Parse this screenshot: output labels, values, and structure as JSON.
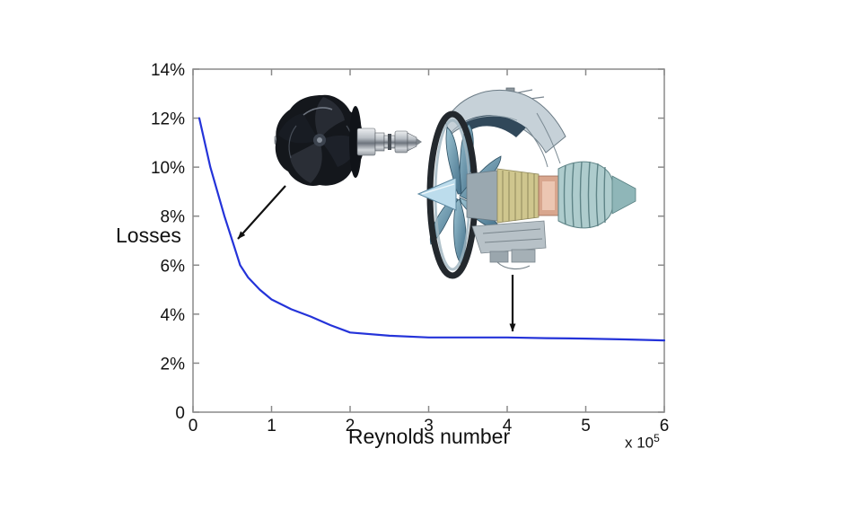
{
  "chart_data": {
    "type": "line",
    "title": "",
    "xlabel": "Reynolds number",
    "ylabel": "Losses",
    "x_scale_prefix": "x 10",
    "x_scale_exponent": "5",
    "xlim": [
      0,
      6
    ],
    "ylim": [
      0,
      14
    ],
    "grid": false,
    "frame_color": "#8a8a8a",
    "text_color": "#111111",
    "x_ticks": [
      {
        "v": 0,
        "label": "0"
      },
      {
        "v": 1,
        "label": "1"
      },
      {
        "v": 2,
        "label": "2"
      },
      {
        "v": 3,
        "label": "3"
      },
      {
        "v": 4,
        "label": "4"
      },
      {
        "v": 5,
        "label": "5"
      },
      {
        "v": 6,
        "label": "6"
      }
    ],
    "y_ticks": [
      {
        "v": 0,
        "label": "0"
      },
      {
        "v": 2,
        "label": "2%"
      },
      {
        "v": 4,
        "label": "4%"
      },
      {
        "v": 6,
        "label": "6%"
      },
      {
        "v": 8,
        "label": "8%"
      },
      {
        "v": 10,
        "label": "10%"
      },
      {
        "v": 12,
        "label": "12%"
      },
      {
        "v": 14,
        "label": "14%"
      }
    ],
    "series": [
      {
        "name": "losses-vs-reynolds",
        "color": "#2433d9",
        "x": [
          0.08,
          0.22,
          0.4,
          0.5,
          0.6,
          0.7,
          0.85,
          1.0,
          1.25,
          1.5,
          1.75,
          2.0,
          2.5,
          3.0,
          3.5,
          4.0,
          4.5,
          5.0,
          5.5,
          6.0
        ],
        "y": [
          12.0,
          10.0,
          8.0,
          7.0,
          6.0,
          5.5,
          5.0,
          4.6,
          4.2,
          3.9,
          3.55,
          3.25,
          3.12,
          3.05,
          3.05,
          3.05,
          3.02,
          3.0,
          2.97,
          2.93
        ]
      }
    ],
    "annotations": [
      {
        "name": "small-turbomachine-arrow",
        "points_to": {
          "x": 0.55,
          "y": 7.0
        },
        "illustration": "centrifugal-compressor-wheel"
      },
      {
        "name": "large-turbomachine-arrow",
        "points_to": {
          "x": 4.05,
          "y": 3.1
        },
        "illustration": "turbofan-engine-cutaway"
      }
    ],
    "illustrations": [
      {
        "name": "centrifugal-compressor-wheel"
      },
      {
        "name": "turbofan-engine-cutaway"
      }
    ]
  }
}
